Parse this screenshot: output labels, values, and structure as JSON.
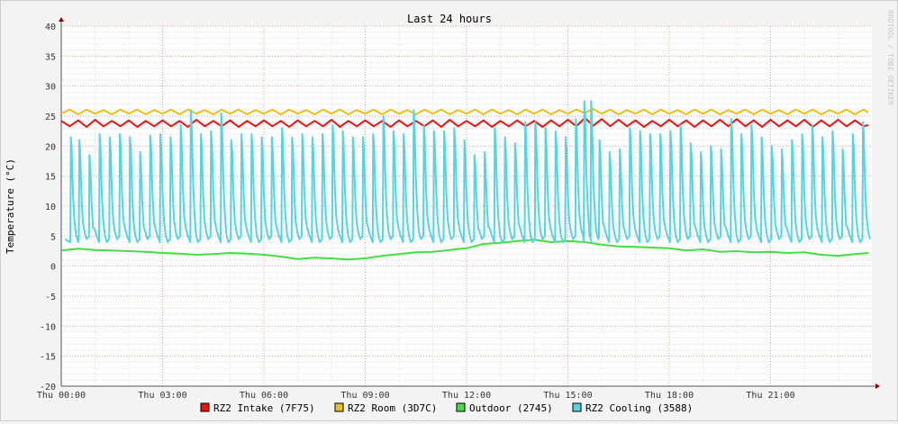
{
  "chart_data": {
    "type": "line",
    "title": "Last 24 hours",
    "ylabel": "Temperature (°C)",
    "watermark": "RRDTOOL / TOBI OETIKER",
    "ylim": [
      -20,
      40
    ],
    "yticks": [
      -20,
      -15,
      -10,
      -5,
      0,
      5,
      10,
      15,
      20,
      25,
      30,
      35,
      40
    ],
    "xticks": [
      {
        "hour": 0,
        "label": "Thu 00:00"
      },
      {
        "hour": 3,
        "label": "Thu 03:00"
      },
      {
        "hour": 6,
        "label": "Thu 06:00"
      },
      {
        "hour": 9,
        "label": "Thu 09:00"
      },
      {
        "hour": 12,
        "label": "Thu 12:00"
      },
      {
        "hour": 15,
        "label": "Thu 15:00"
      },
      {
        "hour": 18,
        "label": "Thu 18:00"
      },
      {
        "hour": 21,
        "label": "Thu 21:00"
      }
    ],
    "xlim_hours": [
      0,
      24
    ],
    "series": [
      {
        "name": "RZ2 Intake (7F75)",
        "color": "#ee1111",
        "x_hours": [
          0.0,
          0.25,
          0.5,
          0.75,
          1.0,
          1.25,
          1.5,
          1.75,
          2.0,
          2.25,
          2.5,
          2.75,
          3.0,
          3.25,
          3.5,
          3.75,
          4.0,
          4.25,
          4.5,
          4.75,
          5.0,
          5.25,
          5.5,
          5.75,
          6.0,
          6.25,
          6.5,
          6.75,
          7.0,
          7.25,
          7.5,
          7.75,
          8.0,
          8.25,
          8.5,
          8.75,
          9.0,
          9.25,
          9.5,
          9.75,
          10.0,
          10.25,
          10.5,
          10.75,
          11.0,
          11.25,
          11.5,
          11.75,
          12.0,
          12.25,
          12.5,
          12.75,
          13.0,
          13.25,
          13.5,
          13.75,
          14.0,
          14.25,
          14.5,
          14.75,
          15.0,
          15.25,
          15.5,
          15.75,
          16.0,
          16.25,
          16.5,
          16.75,
          17.0,
          17.25,
          17.5,
          17.75,
          18.0,
          18.25,
          18.5,
          18.75,
          19.0,
          19.25,
          19.5,
          19.75,
          20.0,
          20.25,
          20.5,
          20.75,
          21.0,
          21.25,
          21.5,
          21.75,
          22.0,
          22.25,
          22.5,
          22.75,
          23.0,
          23.25,
          23.5,
          23.75,
          23.9
        ],
        "values": [
          24.2,
          23.3,
          24.3,
          23.2,
          24.4,
          23.3,
          24.2,
          23.3,
          24.3,
          23.2,
          24.2,
          23.3,
          24.3,
          23.3,
          24.2,
          23.2,
          24.4,
          23.3,
          24.2,
          23.3,
          24.3,
          23.2,
          24.2,
          23.3,
          24.3,
          23.3,
          24.2,
          23.2,
          24.3,
          23.3,
          24.2,
          23.3,
          24.4,
          23.2,
          24.2,
          23.3,
          24.3,
          23.3,
          24.2,
          23.2,
          24.3,
          23.3,
          24.2,
          23.3,
          24.3,
          23.2,
          24.4,
          23.3,
          24.2,
          23.3,
          24.3,
          23.2,
          24.2,
          23.3,
          24.3,
          23.3,
          24.2,
          23.2,
          24.3,
          23.3,
          24.4,
          23.3,
          24.7,
          23.4,
          24.5,
          23.3,
          24.4,
          23.3,
          24.3,
          23.2,
          24.2,
          23.3,
          24.4,
          23.3,
          24.3,
          23.2,
          24.3,
          23.3,
          24.4,
          23.3,
          24.5,
          23.3,
          24.3,
          23.2,
          24.4,
          23.3,
          24.3,
          23.3,
          24.4,
          23.2,
          24.3,
          23.3,
          24.4,
          23.3,
          24.3,
          23.3,
          23.5
        ]
      },
      {
        "name": "RZ2 Room (3D7C)",
        "color": "#e8c020",
        "x_hours": [
          0.0,
          0.25,
          0.5,
          0.75,
          1.0,
          1.25,
          1.5,
          1.75,
          2.0,
          2.25,
          2.5,
          2.75,
          3.0,
          3.25,
          3.5,
          3.75,
          4.0,
          4.25,
          4.5,
          4.75,
          5.0,
          5.25,
          5.5,
          5.75,
          6.0,
          6.25,
          6.5,
          6.75,
          7.0,
          7.25,
          7.5,
          7.75,
          8.0,
          8.25,
          8.5,
          8.75,
          9.0,
          9.25,
          9.5,
          9.75,
          10.0,
          10.25,
          10.5,
          10.75,
          11.0,
          11.25,
          11.5,
          11.75,
          12.0,
          12.25,
          12.5,
          12.75,
          13.0,
          13.25,
          13.5,
          13.75,
          14.0,
          14.25,
          14.5,
          14.75,
          15.0,
          15.25,
          15.5,
          15.75,
          16.0,
          16.25,
          16.5,
          16.75,
          17.0,
          17.25,
          17.5,
          17.75,
          18.0,
          18.25,
          18.5,
          18.75,
          19.0,
          19.25,
          19.5,
          19.75,
          20.0,
          20.25,
          20.5,
          20.75,
          21.0,
          21.25,
          21.5,
          21.75,
          22.0,
          22.25,
          22.5,
          22.75,
          23.0,
          23.25,
          23.5,
          23.75,
          23.9
        ],
        "values": [
          25.4,
          26.1,
          25.3,
          26.1,
          25.4,
          26.0,
          25.3,
          26.1,
          25.4,
          26.1,
          25.3,
          26.0,
          25.4,
          26.1,
          25.3,
          26.1,
          25.4,
          26.0,
          25.3,
          26.1,
          25.4,
          26.1,
          25.3,
          26.0,
          25.4,
          26.1,
          25.3,
          26.1,
          25.4,
          26.0,
          25.3,
          26.1,
          25.4,
          26.1,
          25.3,
          26.0,
          25.4,
          26.1,
          25.3,
          26.1,
          25.4,
          26.0,
          25.3,
          26.1,
          25.4,
          26.1,
          25.3,
          26.0,
          25.4,
          26.1,
          25.3,
          26.1,
          25.4,
          26.0,
          25.3,
          26.1,
          25.4,
          26.1,
          25.3,
          26.0,
          25.4,
          26.1,
          25.5,
          26.2,
          25.4,
          26.1,
          25.3,
          26.0,
          25.4,
          26.1,
          25.3,
          26.1,
          25.4,
          26.0,
          25.3,
          26.1,
          25.4,
          26.1,
          25.3,
          26.0,
          25.4,
          26.1,
          25.3,
          26.1,
          25.4,
          26.0,
          25.3,
          26.1,
          25.4,
          26.1,
          25.3,
          26.0,
          25.4,
          26.1,
          25.3,
          26.1,
          25.6
        ]
      },
      {
        "name": "Outdoor (2745)",
        "color": "#44dd44",
        "x_hours": [
          0.0,
          0.5,
          1.0,
          1.5,
          2.0,
          2.5,
          3.0,
          3.5,
          4.0,
          4.5,
          5.0,
          5.5,
          6.0,
          6.5,
          7.0,
          7.5,
          8.0,
          8.5,
          9.0,
          9.5,
          10.0,
          10.5,
          11.0,
          11.5,
          12.0,
          12.5,
          13.0,
          13.5,
          14.0,
          14.5,
          15.0,
          15.5,
          16.0,
          16.5,
          17.0,
          17.5,
          18.0,
          18.5,
          19.0,
          19.5,
          20.0,
          20.5,
          21.0,
          21.5,
          22.0,
          22.5,
          23.0,
          23.5,
          23.9
        ],
        "values": [
          2.6,
          2.9,
          2.7,
          2.6,
          2.5,
          2.4,
          2.2,
          2.1,
          1.9,
          2.0,
          2.2,
          2.1,
          1.9,
          1.6,
          1.2,
          1.4,
          1.3,
          1.1,
          1.3,
          1.7,
          2.0,
          2.3,
          2.4,
          2.7,
          3.0,
          3.7,
          3.9,
          4.2,
          4.4,
          4.0,
          4.2,
          4.0,
          3.6,
          3.3,
          3.2,
          3.1,
          3.0,
          2.6,
          2.8,
          2.4,
          2.5,
          2.3,
          2.4,
          2.2,
          2.3,
          1.9,
          1.7,
          2.0,
          2.2
        ]
      },
      {
        "name": "RZ2 Cooling (3588)",
        "color": "#55d4e4",
        "cycle_peak_hours": [
          0.3,
          0.55,
          0.85,
          1.15,
          1.45,
          1.75,
          2.05,
          2.35,
          2.65,
          2.95,
          3.25,
          3.55,
          3.85,
          4.15,
          4.45,
          4.75,
          5.05,
          5.35,
          5.65,
          5.95,
          6.25,
          6.55,
          6.85,
          7.15,
          7.45,
          7.75,
          8.05,
          8.35,
          8.65,
          8.95,
          9.25,
          9.55,
          9.85,
          10.15,
          10.45,
          10.75,
          11.05,
          11.35,
          11.65,
          11.95,
          12.25,
          12.55,
          12.85,
          13.15,
          13.45,
          13.75,
          14.05,
          14.35,
          14.65,
          14.95,
          15.25,
          15.5,
          15.7,
          15.95,
          16.25,
          16.55,
          16.85,
          17.15,
          17.45,
          17.75,
          18.05,
          18.35,
          18.65,
          18.95,
          19.25,
          19.55,
          19.85,
          20.15,
          20.45,
          20.75,
          21.05,
          21.35,
          21.65,
          21.95,
          22.25,
          22.55,
          22.85,
          23.15,
          23.45,
          23.75
        ],
        "cycle_peak_values": [
          21.5,
          21.0,
          18.5,
          22.0,
          21.5,
          22.0,
          21.5,
          19.0,
          21.8,
          22.0,
          21.5,
          23.5,
          26.0,
          22.0,
          22.5,
          25.5,
          21.0,
          22.0,
          22.0,
          21.5,
          21.5,
          23.0,
          21.5,
          22.0,
          21.5,
          22.0,
          23.5,
          22.5,
          21.5,
          21.5,
          22.0,
          25.0,
          22.5,
          22.0,
          26.0,
          23.5,
          22.5,
          22.5,
          23.0,
          21.0,
          18.5,
          19.0,
          23.0,
          21.5,
          20.5,
          24.0,
          24.0,
          23.0,
          22.5,
          21.5,
          24.5,
          27.5,
          27.5,
          21.0,
          19.0,
          19.5,
          23.0,
          22.5,
          22.0,
          22.0,
          22.5,
          23.5,
          20.5,
          19.0,
          20.0,
          19.5,
          24.5,
          22.0,
          23.5,
          21.5,
          20.0,
          19.5,
          21.0,
          22.0,
          23.5,
          21.5,
          22.5,
          19.5,
          22.0,
          24.0
        ],
        "baseline_values": [
          4.0,
          4.5,
          5.0
        ]
      }
    ]
  }
}
